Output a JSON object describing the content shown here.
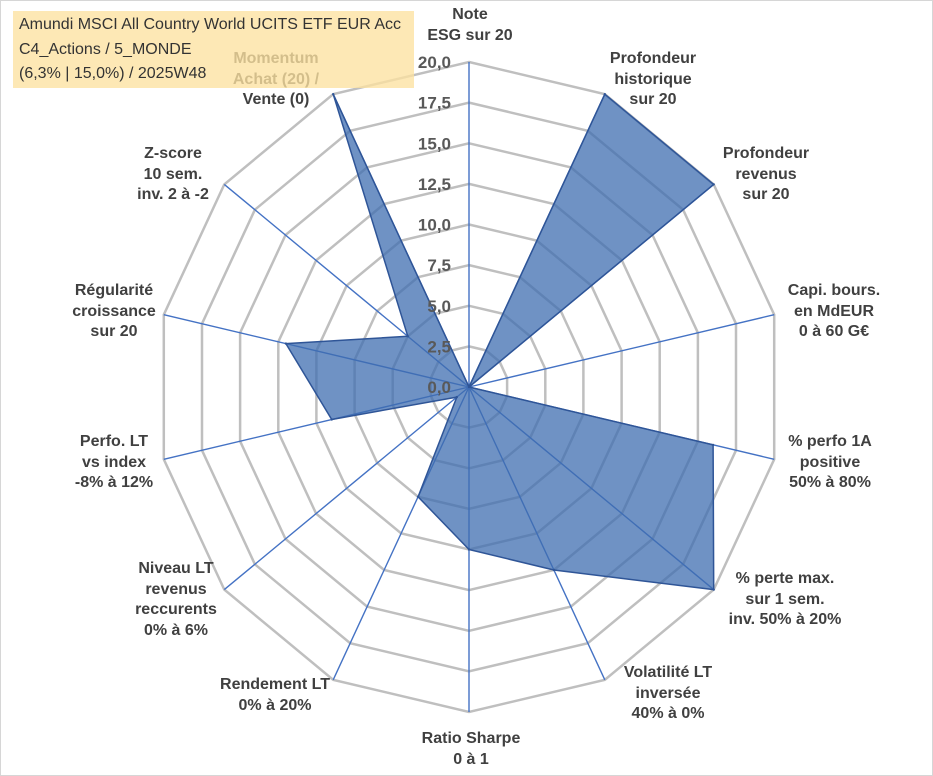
{
  "title_box": {
    "lines": [
      "Amundi MSCI All Country World UCITS ETF EUR Acc",
      "C4_Actions / 5_MONDE",
      "(6,3% | 15,0%) / 2025W48"
    ]
  },
  "chart_data": {
    "type": "radar",
    "categories": [
      "Note\nESG sur 20",
      "Profondeur\nhistorique\nsur 20",
      "Profondeur\nrevenus\nsur 20",
      "Capi. bours.\nen MdEUR\n0 à 60 G€",
      "% perfo 1A\npositive\n50% à 80%",
      "% perte max.\nsur 1 sem.\ninv. 50% à 20%",
      "Volatilité LT\ninversée\n40% à 0%",
      "Ratio Sharpe\n0 à 1",
      "Rendement LT\n0% à 20%",
      "Niveau LT\nrevenus\nreccurents\n0% à 6%",
      "Perfo. LT\nvs index\n-8% à 12%",
      "Régularité\ncroissance\nsur 20",
      "Z-score\n10 sem.\ninv. 2 à -2",
      "Momentum\nAchat (20) /\nVente (0)"
    ],
    "series": [
      {
        "values": [
          0,
          20,
          20,
          0,
          16,
          20,
          12.5,
          10,
          7.5,
          1,
          9,
          12,
          5,
          20
        ]
      }
    ],
    "rlim": [
      0,
      20
    ],
    "r_ticks": [
      0,
      2.5,
      5,
      7.5,
      10,
      12.5,
      15,
      17.5,
      20
    ],
    "r_tick_labels": [
      "0,0",
      "2,5",
      "5,0",
      "7,5",
      "10,0",
      "12,5",
      "15,0",
      "17,5",
      "20,0"
    ],
    "grid": true,
    "legend": "none",
    "colors": {
      "series_fill": "#3f6eb0",
      "series_line": "#2f5597",
      "axis": "#4472c4",
      "grid": "#bfbfbf"
    }
  }
}
